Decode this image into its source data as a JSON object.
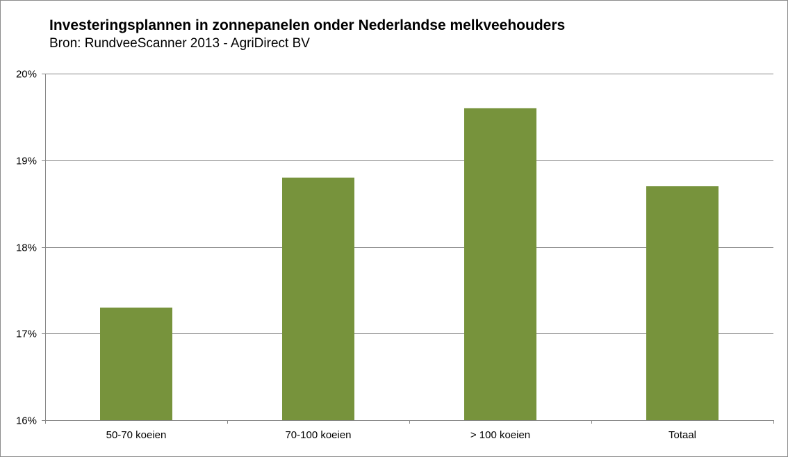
{
  "chart_data": {
    "type": "bar",
    "title": "Investeringsplannen in zonnepanelen onder Nederlandse melkveehouders",
    "subtitle": "Bron: RundveeScanner 2013 - AgriDirect BV",
    "categories": [
      "50-70 koeien",
      "70-100 koeien",
      "> 100 koeien",
      "Totaal"
    ],
    "values": [
      17.3,
      18.8,
      19.6,
      18.7
    ],
    "ylim": [
      16,
      20
    ],
    "yticks": [
      16,
      17,
      18,
      19,
      20
    ],
    "ytick_labels": [
      "16%",
      "17%",
      "18%",
      "19%",
      "20%"
    ],
    "xlabel": "",
    "ylabel": "",
    "grid": true,
    "legend": "none",
    "bar_color": "#77933c",
    "gridline_color": "#868686"
  }
}
